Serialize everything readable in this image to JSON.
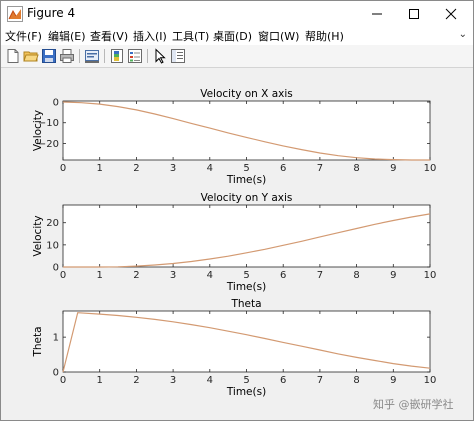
{
  "window": {
    "title": "Figure 4",
    "app_icon": "matlab-figure-icon",
    "controls": [
      "minimize-icon",
      "maximize-icon",
      "close-icon"
    ]
  },
  "menu": {
    "items": [
      "文件(F)",
      "编辑(E)",
      "查看(V)",
      "插入(I)",
      "工具(T)",
      "桌面(D)",
      "窗口(W)",
      "帮助(H)"
    ],
    "overflow_icon": "chevron-down-icon"
  },
  "toolbar": {
    "buttons": [
      "new-figure-icon",
      "open-file-icon",
      "save-icon",
      "print-icon",
      "link-plot-icon",
      "insert-colorbar-icon",
      "insert-legend-icon",
      "edit-plot-icon",
      "property-inspector-icon"
    ]
  },
  "colors": {
    "line": "#d39a72",
    "axes_bg": "#ffffff",
    "figure_bg": "#f0f0f0"
  },
  "chart_data": [
    {
      "type": "line",
      "title": "Velocity on X axis",
      "xlabel": "Time(s)",
      "ylabel": "Velocity",
      "xlim": [
        0,
        10
      ],
      "ylim": [
        -28,
        0.5
      ],
      "xticks": [
        "0",
        "1",
        "2",
        "3",
        "4",
        "5",
        "6",
        "7",
        "8",
        "9",
        "10"
      ],
      "yticks": [
        0,
        -10,
        -20
      ],
      "yticklabels": [
        "0",
        "−10",
        "−20"
      ],
      "grid": false,
      "series": [
        {
          "x": [
            0,
            0.5,
            1,
            1.5,
            2,
            2.5,
            3,
            3.5,
            4,
            4.5,
            5,
            5.5,
            6,
            6.5,
            7,
            7.5,
            8,
            8.5,
            9,
            9.5,
            10
          ],
          "values": [
            0,
            -0.3,
            -1.0,
            -2.2,
            -3.8,
            -5.8,
            -8.0,
            -10.3,
            -12.6,
            -14.9,
            -17.1,
            -19.2,
            -21.2,
            -23.0,
            -24.6,
            -25.9,
            -26.9,
            -27.5,
            -27.8,
            -28.0,
            -28.0
          ]
        }
      ]
    },
    {
      "type": "line",
      "title": "Velocity on Y axis",
      "xlabel": "Time(s)",
      "ylabel": "Velocity",
      "xlim": [
        0,
        10
      ],
      "ylim": [
        0,
        28
      ],
      "xticks": [
        "0",
        "1",
        "2",
        "3",
        "4",
        "5",
        "6",
        "7",
        "8",
        "9",
        "10"
      ],
      "yticks": [
        0,
        10,
        20
      ],
      "yticklabels": [
        "0",
        "10",
        "20"
      ],
      "grid": false,
      "series": [
        {
          "x": [
            0,
            0.5,
            1,
            1.5,
            2,
            2.5,
            3,
            3.5,
            4,
            4.5,
            5,
            5.5,
            6,
            6.5,
            7,
            7.5,
            8,
            8.5,
            9,
            9.5,
            10
          ],
          "values": [
            0,
            0,
            0,
            0.1,
            0.4,
            0.9,
            1.6,
            2.5,
            3.6,
            4.9,
            6.4,
            8.0,
            9.8,
            11.6,
            13.6,
            15.5,
            17.4,
            19.3,
            21.0,
            22.6,
            24.0
          ]
        }
      ]
    },
    {
      "type": "line",
      "title": "Theta",
      "xlabel": "Time(s)",
      "ylabel": "Theta",
      "xlim": [
        0,
        10
      ],
      "ylim": [
        0,
        1.75
      ],
      "xticks": [
        "0",
        "1",
        "2",
        "3",
        "4",
        "5",
        "6",
        "7",
        "8",
        "9",
        "10"
      ],
      "yticks": [
        0,
        1
      ],
      "yticklabels": [
        "0",
        "1"
      ],
      "grid": false,
      "series": [
        {
          "x": [
            0,
            0.4,
            1,
            1.5,
            2,
            2.5,
            3,
            3.5,
            4,
            4.5,
            5,
            5.5,
            6,
            6.5,
            7,
            7.5,
            8,
            8.5,
            9,
            9.5,
            10
          ],
          "values": [
            0,
            1.7,
            1.66,
            1.62,
            1.57,
            1.51,
            1.44,
            1.36,
            1.27,
            1.17,
            1.07,
            0.96,
            0.85,
            0.74,
            0.63,
            0.52,
            0.42,
            0.33,
            0.24,
            0.17,
            0.11
          ]
        }
      ]
    }
  ],
  "watermark": "知乎 @嵌研学社"
}
